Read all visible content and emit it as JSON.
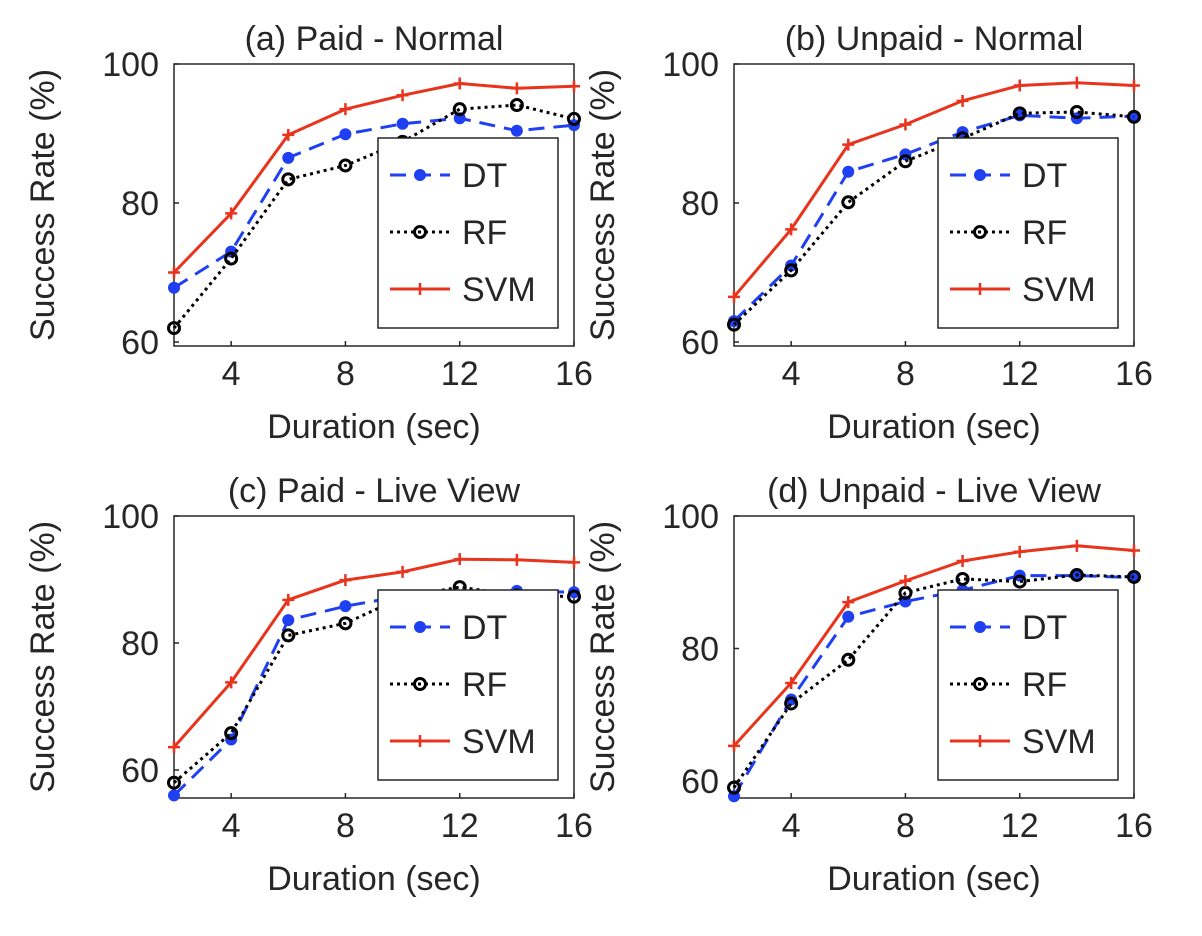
{
  "chart_data": [
    {
      "type": "line",
      "title": "(a) Paid - Normal",
      "xlabel": "Duration (sec)",
      "ylabel": "Success Rate (%)",
      "xlim": [
        2,
        16
      ],
      "ylim": [
        60,
        100
      ],
      "xticks": [
        "4",
        "8",
        "12",
        "16"
      ],
      "yticks": [
        "60",
        "80",
        "100"
      ],
      "legend_position": "bottom-right",
      "x": [
        2,
        4,
        6,
        8,
        10,
        12,
        14,
        16
      ],
      "series": [
        {
          "name": "DT",
          "color": "#1f3ff2",
          "style": "dashed",
          "marker": "filled-circle",
          "values": [
            67.8,
            73.0,
            86.5,
            89.9,
            91.4,
            92.2,
            90.4,
            91.2
          ]
        },
        {
          "name": "RF",
          "color": "#000000",
          "style": "dotted",
          "marker": "open-circle",
          "values": [
            62.0,
            72.0,
            83.4,
            85.4,
            88.8,
            93.5,
            94.1,
            92.1
          ]
        },
        {
          "name": "SVM",
          "color": "#e8341c",
          "style": "solid",
          "marker": "plus",
          "values": [
            70.0,
            78.5,
            89.8,
            93.5,
            95.5,
            97.2,
            96.5,
            96.8
          ]
        }
      ]
    },
    {
      "type": "line",
      "title": "(b) Unpaid - Normal",
      "xlabel": "Duration (sec)",
      "ylabel": "Success Rate (%)",
      "xlim": [
        2,
        16
      ],
      "ylim": [
        60,
        100
      ],
      "xticks": [
        "4",
        "8",
        "12",
        "16"
      ],
      "yticks": [
        "60",
        "80",
        "100"
      ],
      "legend_position": "bottom-right",
      "x": [
        2,
        4,
        6,
        8,
        10,
        12,
        14,
        16
      ],
      "series": [
        {
          "name": "DT",
          "color": "#1f3ff2",
          "style": "dashed",
          "marker": "filled-circle",
          "values": [
            63.0,
            71.0,
            84.5,
            87.0,
            90.2,
            92.6,
            92.2,
            92.5
          ]
        },
        {
          "name": "RF",
          "color": "#000000",
          "style": "dotted",
          "marker": "open-circle",
          "values": [
            62.5,
            70.3,
            80.1,
            86.0,
            89.3,
            92.9,
            93.1,
            92.4
          ]
        },
        {
          "name": "SVM",
          "color": "#e8341c",
          "style": "solid",
          "marker": "plus",
          "values": [
            66.5,
            76.2,
            88.4,
            91.3,
            94.7,
            96.9,
            97.3,
            96.9
          ]
        }
      ]
    },
    {
      "type": "line",
      "title": "(c) Paid - Live View",
      "xlabel": "Duration (sec)",
      "ylabel": "Success Rate (%)",
      "xlim": [
        2,
        16
      ],
      "ylim": [
        55,
        100
      ],
      "xticks": [
        "4",
        "8",
        "12",
        "16"
      ],
      "yticks": [
        "60",
        "80",
        "100"
      ],
      "legend_position": "bottom-right",
      "x": [
        2,
        4,
        6,
        8,
        10,
        12,
        14,
        16
      ],
      "series": [
        {
          "name": "DT",
          "color": "#1f3ff2",
          "style": "dashed",
          "marker": "filled-circle",
          "values": [
            56.0,
            64.8,
            83.6,
            85.8,
            87.4,
            87.2,
            88.2,
            88.0
          ]
        },
        {
          "name": "RF",
          "color": "#000000",
          "style": "dotted",
          "marker": "open-circle",
          "values": [
            58.0,
            65.8,
            81.2,
            83.1,
            87.2,
            88.8,
            87.5,
            87.3
          ]
        },
        {
          "name": "SVM",
          "color": "#e8341c",
          "style": "solid",
          "marker": "plus",
          "values": [
            63.6,
            73.8,
            86.8,
            89.9,
            91.2,
            93.2,
            93.1,
            92.7
          ]
        }
      ]
    },
    {
      "type": "line",
      "title": "(d) Unpaid - Live View",
      "xlabel": "Duration (sec)",
      "ylabel": "Success Rate (%)",
      "xlim": [
        2,
        16
      ],
      "ylim": [
        58,
        100
      ],
      "xticks": [
        "4",
        "8",
        "12",
        "16"
      ],
      "yticks": [
        "60",
        "80",
        "100"
      ],
      "legend_position": "bottom-right",
      "x": [
        2,
        4,
        6,
        8,
        10,
        12,
        14,
        16
      ],
      "series": [
        {
          "name": "DT",
          "color": "#1f3ff2",
          "style": "dashed",
          "marker": "filled-circle",
          "values": [
            57.7,
            72.3,
            84.8,
            87.1,
            88.8,
            91.0,
            91.0,
            90.7
          ]
        },
        {
          "name": "RF",
          "color": "#000000",
          "style": "dotted",
          "marker": "open-circle",
          "values": [
            59.0,
            71.7,
            78.3,
            88.4,
            90.5,
            90.1,
            91.1,
            90.8
          ]
        },
        {
          "name": "SVM",
          "color": "#e8341c",
          "style": "solid",
          "marker": "plus",
          "values": [
            65.3,
            74.8,
            87.0,
            90.2,
            93.2,
            94.6,
            95.5,
            94.8
          ]
        }
      ]
    }
  ]
}
